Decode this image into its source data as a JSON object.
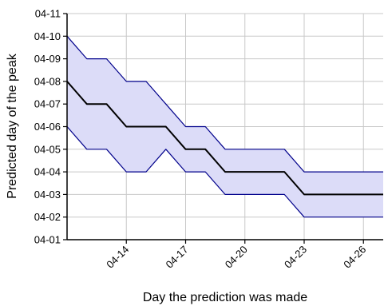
{
  "chart_data": {
    "type": "line",
    "xlabel": "Day the prediction was made",
    "ylabel": "Predicted day of the peak",
    "xlim": [
      "04-11",
      "04-27"
    ],
    "ylim": [
      "04-01",
      "04-11"
    ],
    "x_tick_labels": [
      "04-14",
      "04-17",
      "04-20",
      "04-23",
      "04-26"
    ],
    "y_tick_labels": [
      "04-01",
      "04-02",
      "04-03",
      "04-04",
      "04-05",
      "04-06",
      "04-07",
      "04-08",
      "04-09",
      "04-10",
      "04-11"
    ],
    "grid": true,
    "x": [
      "04-11",
      "04-12",
      "04-13",
      "04-14",
      "04-15",
      "04-16",
      "04-17",
      "04-18",
      "04-19",
      "04-20",
      "04-21",
      "04-22",
      "04-23",
      "04-24",
      "04-25",
      "04-26",
      "04-27"
    ],
    "series": [
      {
        "role": "upper bound",
        "color": "#00008b",
        "values": [
          "04-10",
          "04-09",
          "04-09",
          "04-08",
          "04-08",
          "04-07",
          "04-06",
          "04-06",
          "04-05",
          "04-05",
          "04-05",
          "04-05",
          "04-04",
          "04-04",
          "04-04",
          "04-04",
          "04-04"
        ]
      },
      {
        "role": "prediction",
        "color": "#000000",
        "values": [
          "04-08",
          "04-07",
          "04-07",
          "04-06",
          "04-06",
          "04-06",
          "04-05",
          "04-05",
          "04-04",
          "04-04",
          "04-04",
          "04-04",
          "04-03",
          "04-03",
          "04-03",
          "04-03",
          "04-03"
        ]
      },
      {
        "role": "lower bound",
        "color": "#00008b",
        "values": [
          "04-06",
          "04-05",
          "04-05",
          "04-04",
          "04-04",
          "04-05",
          "04-04",
          "04-04",
          "04-03",
          "04-03",
          "04-03",
          "04-03",
          "04-02",
          "04-02",
          "04-02",
          "04-02",
          "04-02"
        ]
      }
    ],
    "band_fill": "#dcdcf8"
  }
}
